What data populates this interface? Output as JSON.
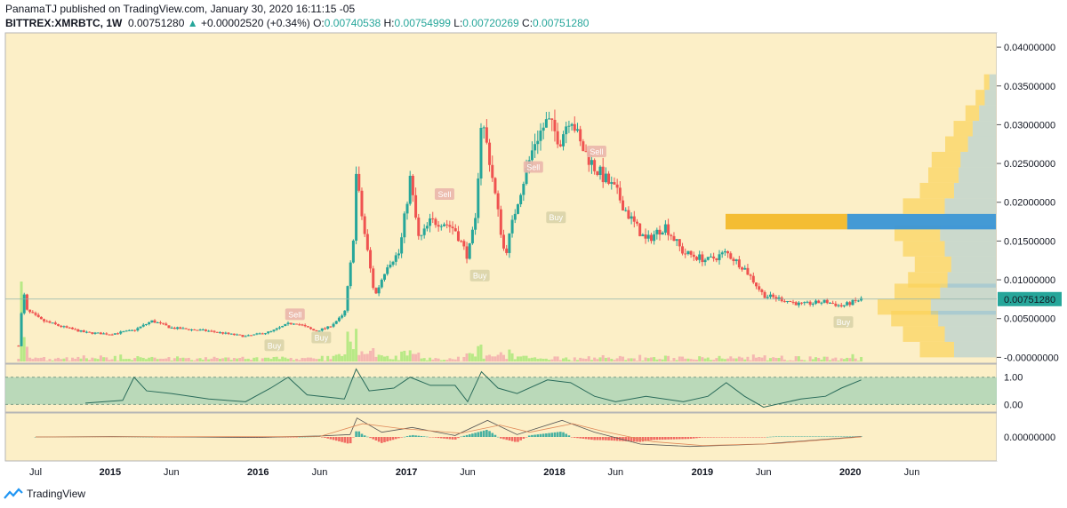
{
  "header": {
    "line1": "PanamaTJ published on TradingView.com, January 30, 2020 16:11:15 -05",
    "symbol": "BITTREX:XMRBTC, 1W",
    "last": "0.00751280",
    "change_arrow": "▲",
    "change": "+0.00002520 (+0.34%)",
    "o_label": "O:",
    "o_val": "0.00740538",
    "h_label": "H:",
    "h_val": "0.00754999",
    "l_label": "L:",
    "l_val": "0.00720269",
    "c_label": "C:",
    "c_val": "0.00751280"
  },
  "footer": {
    "brand": "TradingView",
    "icon": "tradingview-logo-icon"
  },
  "colors": {
    "background": "#fcefc7",
    "up": "#26a69a",
    "down": "#ef5350",
    "vol_up": "#b8e986",
    "vol_down": "#f5b7b1",
    "vp_yellow": "#fbd35a",
    "vp_blue": "#6fb2d8",
    "poc_yellow": "#f3b92b",
    "poc_blue": "#3a95d6",
    "rsi_band": "#a9d3b5",
    "last_price_tag": "#26a69a"
  },
  "chart_data": [
    {
      "type": "candlestick",
      "title": "BITTREX:XMRBTC, 1W",
      "timeframe": "1W",
      "x_ticks": [
        {
          "label": "Jul",
          "date": "2014-07",
          "bold": false
        },
        {
          "label": "2015",
          "date": "2015-01",
          "bold": true
        },
        {
          "label": "Jun",
          "date": "2015-06",
          "bold": false
        },
        {
          "label": "2016",
          "date": "2016-01",
          "bold": true
        },
        {
          "label": "Jun",
          "date": "2016-06",
          "bold": false
        },
        {
          "label": "2017",
          "date": "2017-01",
          "bold": true
        },
        {
          "label": "Jun",
          "date": "2017-06",
          "bold": false
        },
        {
          "label": "2018",
          "date": "2018-01",
          "bold": true
        },
        {
          "label": "Jun",
          "date": "2018-06",
          "bold": false
        },
        {
          "label": "2019",
          "date": "2019-01",
          "bold": true
        },
        {
          "label": "Jun",
          "date": "2019-06",
          "bold": false
        },
        {
          "label": "2020",
          "date": "2020-01",
          "bold": true
        },
        {
          "label": "Jun",
          "date": "2020-06",
          "bold": false
        }
      ],
      "y_ticks": [
        "0.04000000",
        "0.03500000",
        "0.03000000",
        "0.02500000",
        "0.02000000",
        "0.01500000",
        "0.01000000",
        "0.00500000",
        "-0.00000000"
      ],
      "ylim": [
        -0.0003,
        0.0415
      ],
      "last_price": 0.0075128,
      "last_price_label": "0.00751280",
      "price_path": [
        [
          "2014-05-20",
          0.0015
        ],
        [
          "2014-06-01",
          0.0085
        ],
        [
          "2014-06-10",
          0.006
        ],
        [
          "2014-06-25",
          0.0055
        ],
        [
          "2014-07-15",
          0.0048
        ],
        [
          "2014-09-01",
          0.004
        ],
        [
          "2014-11-01",
          0.0032
        ],
        [
          "2015-01-01",
          0.003
        ],
        [
          "2015-03-01",
          0.0035
        ],
        [
          "2015-04-15",
          0.0047
        ],
        [
          "2015-06-01",
          0.0038
        ],
        [
          "2015-09-01",
          0.0034
        ],
        [
          "2015-12-01",
          0.0027
        ],
        [
          "2016-02-01",
          0.0033
        ],
        [
          "2016-03-15",
          0.0043
        ],
        [
          "2016-04-01",
          0.0045
        ],
        [
          "2016-05-20",
          0.0034
        ],
        [
          "2016-06-20",
          0.0038
        ],
        [
          "2016-08-01",
          0.0055
        ],
        [
          "2016-08-22",
          0.0145
        ],
        [
          "2016-08-30",
          0.0235
        ],
        [
          "2016-09-15",
          0.0175
        ],
        [
          "2016-10-15",
          0.0078
        ],
        [
          "2016-11-15",
          0.012
        ],
        [
          "2016-12-15",
          0.0135
        ],
        [
          "2017-01-10",
          0.023
        ],
        [
          "2017-02-01",
          0.015
        ],
        [
          "2017-03-01",
          0.0175
        ],
        [
          "2017-04-01",
          0.0175
        ],
        [
          "2017-05-01",
          0.0165
        ],
        [
          "2017-06-01",
          0.013
        ],
        [
          "2017-06-20",
          0.0175
        ],
        [
          "2017-07-05",
          0.031
        ],
        [
          "2017-07-25",
          0.0255
        ],
        [
          "2017-09-01",
          0.013
        ],
        [
          "2017-10-01",
          0.02
        ],
        [
          "2017-11-15",
          0.028
        ],
        [
          "2017-12-15",
          0.0305
        ],
        [
          "2018-01-15",
          0.028
        ],
        [
          "2018-02-10",
          0.0315
        ],
        [
          "2018-03-05",
          0.0275
        ],
        [
          "2018-04-10",
          0.0245
        ],
        [
          "2018-06-01",
          0.0215
        ],
        [
          "2018-07-01",
          0.0185
        ],
        [
          "2018-08-15",
          0.015
        ],
        [
          "2018-10-01",
          0.017
        ],
        [
          "2018-11-15",
          0.0135
        ],
        [
          "2019-01-15",
          0.0125
        ],
        [
          "2019-03-01",
          0.0135
        ],
        [
          "2019-04-15",
          0.0115
        ],
        [
          "2019-06-01",
          0.008
        ],
        [
          "2019-07-15",
          0.0075
        ],
        [
          "2019-09-01",
          0.0068
        ],
        [
          "2019-11-01",
          0.0072
        ],
        [
          "2019-12-10",
          0.0066
        ],
        [
          "2020-01-28",
          0.0075
        ]
      ],
      "signals": [
        {
          "label": "Sell",
          "date": "2016-04-01",
          "price": 0.0055,
          "side": "sell"
        },
        {
          "label": "Buy",
          "date": "2016-02-10",
          "price": 0.0015,
          "side": "buy"
        },
        {
          "label": "Buy",
          "date": "2016-06-05",
          "price": 0.0025,
          "side": "buy"
        },
        {
          "label": "Sell",
          "date": "2017-04-05",
          "price": 0.021,
          "side": "sell"
        },
        {
          "label": "Buy",
          "date": "2017-07-01",
          "price": 0.0105,
          "side": "buy"
        },
        {
          "label": "Sell",
          "date": "2017-11-10",
          "price": 0.0245,
          "side": "sell"
        },
        {
          "label": "Buy",
          "date": "2018-01-05",
          "price": 0.018,
          "side": "buy"
        },
        {
          "label": "Sell",
          "date": "2018-04-15",
          "price": 0.0265,
          "side": "sell"
        },
        {
          "label": "Buy",
          "date": "2019-12-15",
          "price": 0.0045,
          "side": "buy"
        }
      ],
      "volume_profile": {
        "poc_price": 0.0175,
        "bins": [
          [
            0.001,
            0.45
          ],
          [
            0.003,
            0.55
          ],
          [
            0.005,
            0.62
          ],
          [
            0.0065,
            0.7
          ],
          [
            0.0085,
            0.6
          ],
          [
            0.01,
            0.52
          ],
          [
            0.012,
            0.48
          ],
          [
            0.014,
            0.55
          ],
          [
            0.016,
            0.6
          ],
          [
            0.0175,
            1.0
          ],
          [
            0.0195,
            0.55
          ],
          [
            0.0215,
            0.45
          ],
          [
            0.0235,
            0.4
          ],
          [
            0.0255,
            0.38
          ],
          [
            0.0275,
            0.3
          ],
          [
            0.0295,
            0.25
          ],
          [
            0.0315,
            0.18
          ],
          [
            0.0335,
            0.12
          ],
          [
            0.0355,
            0.07
          ]
        ]
      }
    },
    {
      "type": "line",
      "title": "",
      "y_ticks": [
        "1.00",
        "0.00"
      ],
      "ylim": [
        -0.15,
        1.35
      ],
      "band": [
        0.0,
        1.0
      ],
      "path": [
        [
          "2014-11-01",
          0.05
        ],
        [
          "2015-02-01",
          0.15
        ],
        [
          "2015-03-01",
          1.0
        ],
        [
          "2015-04-01",
          0.5
        ],
        [
          "2015-06-01",
          0.4
        ],
        [
          "2015-09-01",
          0.2
        ],
        [
          "2015-12-01",
          0.1
        ],
        [
          "2016-02-01",
          0.6
        ],
        [
          "2016-03-15",
          1.0
        ],
        [
          "2016-05-01",
          0.35
        ],
        [
          "2016-08-01",
          0.2
        ],
        [
          "2016-08-30",
          1.3
        ],
        [
          "2016-10-01",
          0.5
        ],
        [
          "2016-12-01",
          0.6
        ],
        [
          "2017-01-10",
          1.0
        ],
        [
          "2017-03-01",
          0.7
        ],
        [
          "2017-05-01",
          0.7
        ],
        [
          "2017-06-01",
          0.1
        ],
        [
          "2017-07-05",
          1.2
        ],
        [
          "2017-08-15",
          0.6
        ],
        [
          "2017-10-01",
          0.4
        ],
        [
          "2017-12-15",
          0.9
        ],
        [
          "2018-02-10",
          0.8
        ],
        [
          "2018-04-10",
          0.3
        ],
        [
          "2018-06-01",
          0.1
        ],
        [
          "2018-08-15",
          0.3
        ],
        [
          "2018-11-15",
          0.1
        ],
        [
          "2019-01-15",
          0.3
        ],
        [
          "2019-03-01",
          0.8
        ],
        [
          "2019-04-15",
          0.3
        ],
        [
          "2019-06-01",
          -0.1
        ],
        [
          "2019-09-01",
          0.2
        ],
        [
          "2019-11-01",
          0.3
        ],
        [
          "2019-12-10",
          0.6
        ],
        [
          "2020-01-28",
          0.9
        ]
      ]
    },
    {
      "type": "macd",
      "title": "",
      "y_ticks": [
        "0.00000000"
      ],
      "ylim": [
        -0.0045,
        0.0045
      ],
      "macd_path": [
        [
          "2014-07-01",
          0.0
        ],
        [
          "2015-01-01",
          0.0001
        ],
        [
          "2016-01-01",
          -0.0001
        ],
        [
          "2016-06-01",
          0.0002
        ],
        [
          "2016-08-15",
          0.0005
        ],
        [
          "2016-09-01",
          0.004
        ],
        [
          "2016-11-01",
          0.001
        ],
        [
          "2017-01-15",
          0.002
        ],
        [
          "2017-05-01",
          0.0003
        ],
        [
          "2017-07-20",
          0.0035
        ],
        [
          "2017-10-01",
          0.0005
        ],
        [
          "2018-01-20",
          0.0035
        ],
        [
          "2018-04-10",
          0.001
        ],
        [
          "2018-08-01",
          -0.0015
        ],
        [
          "2018-12-01",
          -0.002
        ],
        [
          "2019-06-01",
          -0.0015
        ],
        [
          "2020-01-28",
          0.0001
        ]
      ],
      "signal_path": [
        [
          "2014-07-01",
          0.0
        ],
        [
          "2016-06-01",
          0.0001
        ],
        [
          "2016-09-15",
          0.0028
        ],
        [
          "2016-12-15",
          0.0018
        ],
        [
          "2017-05-15",
          0.0008
        ],
        [
          "2017-08-20",
          0.0025
        ],
        [
          "2017-11-01",
          0.001
        ],
        [
          "2018-02-15",
          0.0028
        ],
        [
          "2018-05-01",
          0.0012
        ],
        [
          "2018-09-01",
          -0.001
        ],
        [
          "2019-01-01",
          -0.0018
        ],
        [
          "2019-07-01",
          -0.0014
        ],
        [
          "2020-01-28",
          0.0
        ]
      ]
    }
  ]
}
